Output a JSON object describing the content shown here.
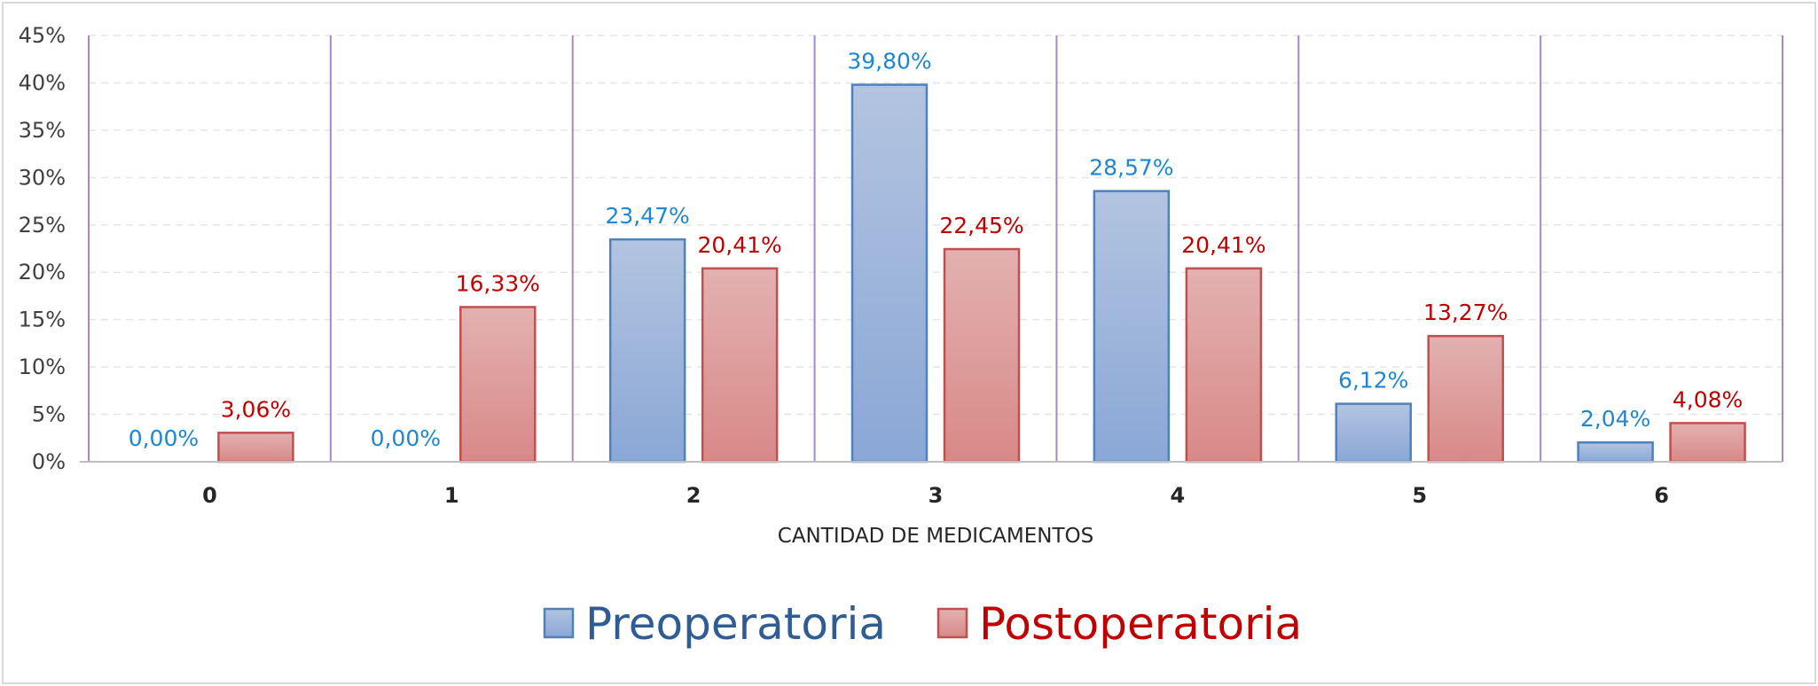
{
  "chart_data": {
    "type": "bar",
    "xlabel": "CANTIDAD DE MEDICAMENTOS",
    "ylabel": "",
    "ylim": [
      0,
      45
    ],
    "yticks": [
      0,
      5,
      10,
      15,
      20,
      25,
      30,
      35,
      40,
      45
    ],
    "ytick_labels": [
      "0%",
      "5%",
      "10%",
      "15%",
      "20%",
      "25%",
      "30%",
      "35%",
      "40%",
      "45%"
    ],
    "categories": [
      "0",
      "1",
      "2",
      "3",
      "4",
      "5",
      "6"
    ],
    "series": [
      {
        "name": "Preoperatoria",
        "values": [
          0.0,
          0.0,
          23.47,
          39.8,
          28.57,
          6.12,
          2.04
        ],
        "labels": [
          "0,00%",
          "0,00%",
          "23,47%",
          "39,80%",
          "28,57%",
          "6,12%",
          "2,04%"
        ],
        "color": "#4F81BD",
        "label_color": "#1F86D4"
      },
      {
        "name": "Postoperatoria",
        "values": [
          3.06,
          16.33,
          20.41,
          22.45,
          20.41,
          13.27,
          4.08
        ],
        "labels": [
          "3,06%",
          "16,33%",
          "20,41%",
          "22,45%",
          "20,41%",
          "13,27%",
          "4,08%"
        ],
        "color": "#C0504D",
        "label_color": "#C00000"
      }
    ],
    "grid": true,
    "legend_position": "bottom",
    "legend_text_colors": [
      "#2F5C94",
      "#C00000"
    ]
  }
}
